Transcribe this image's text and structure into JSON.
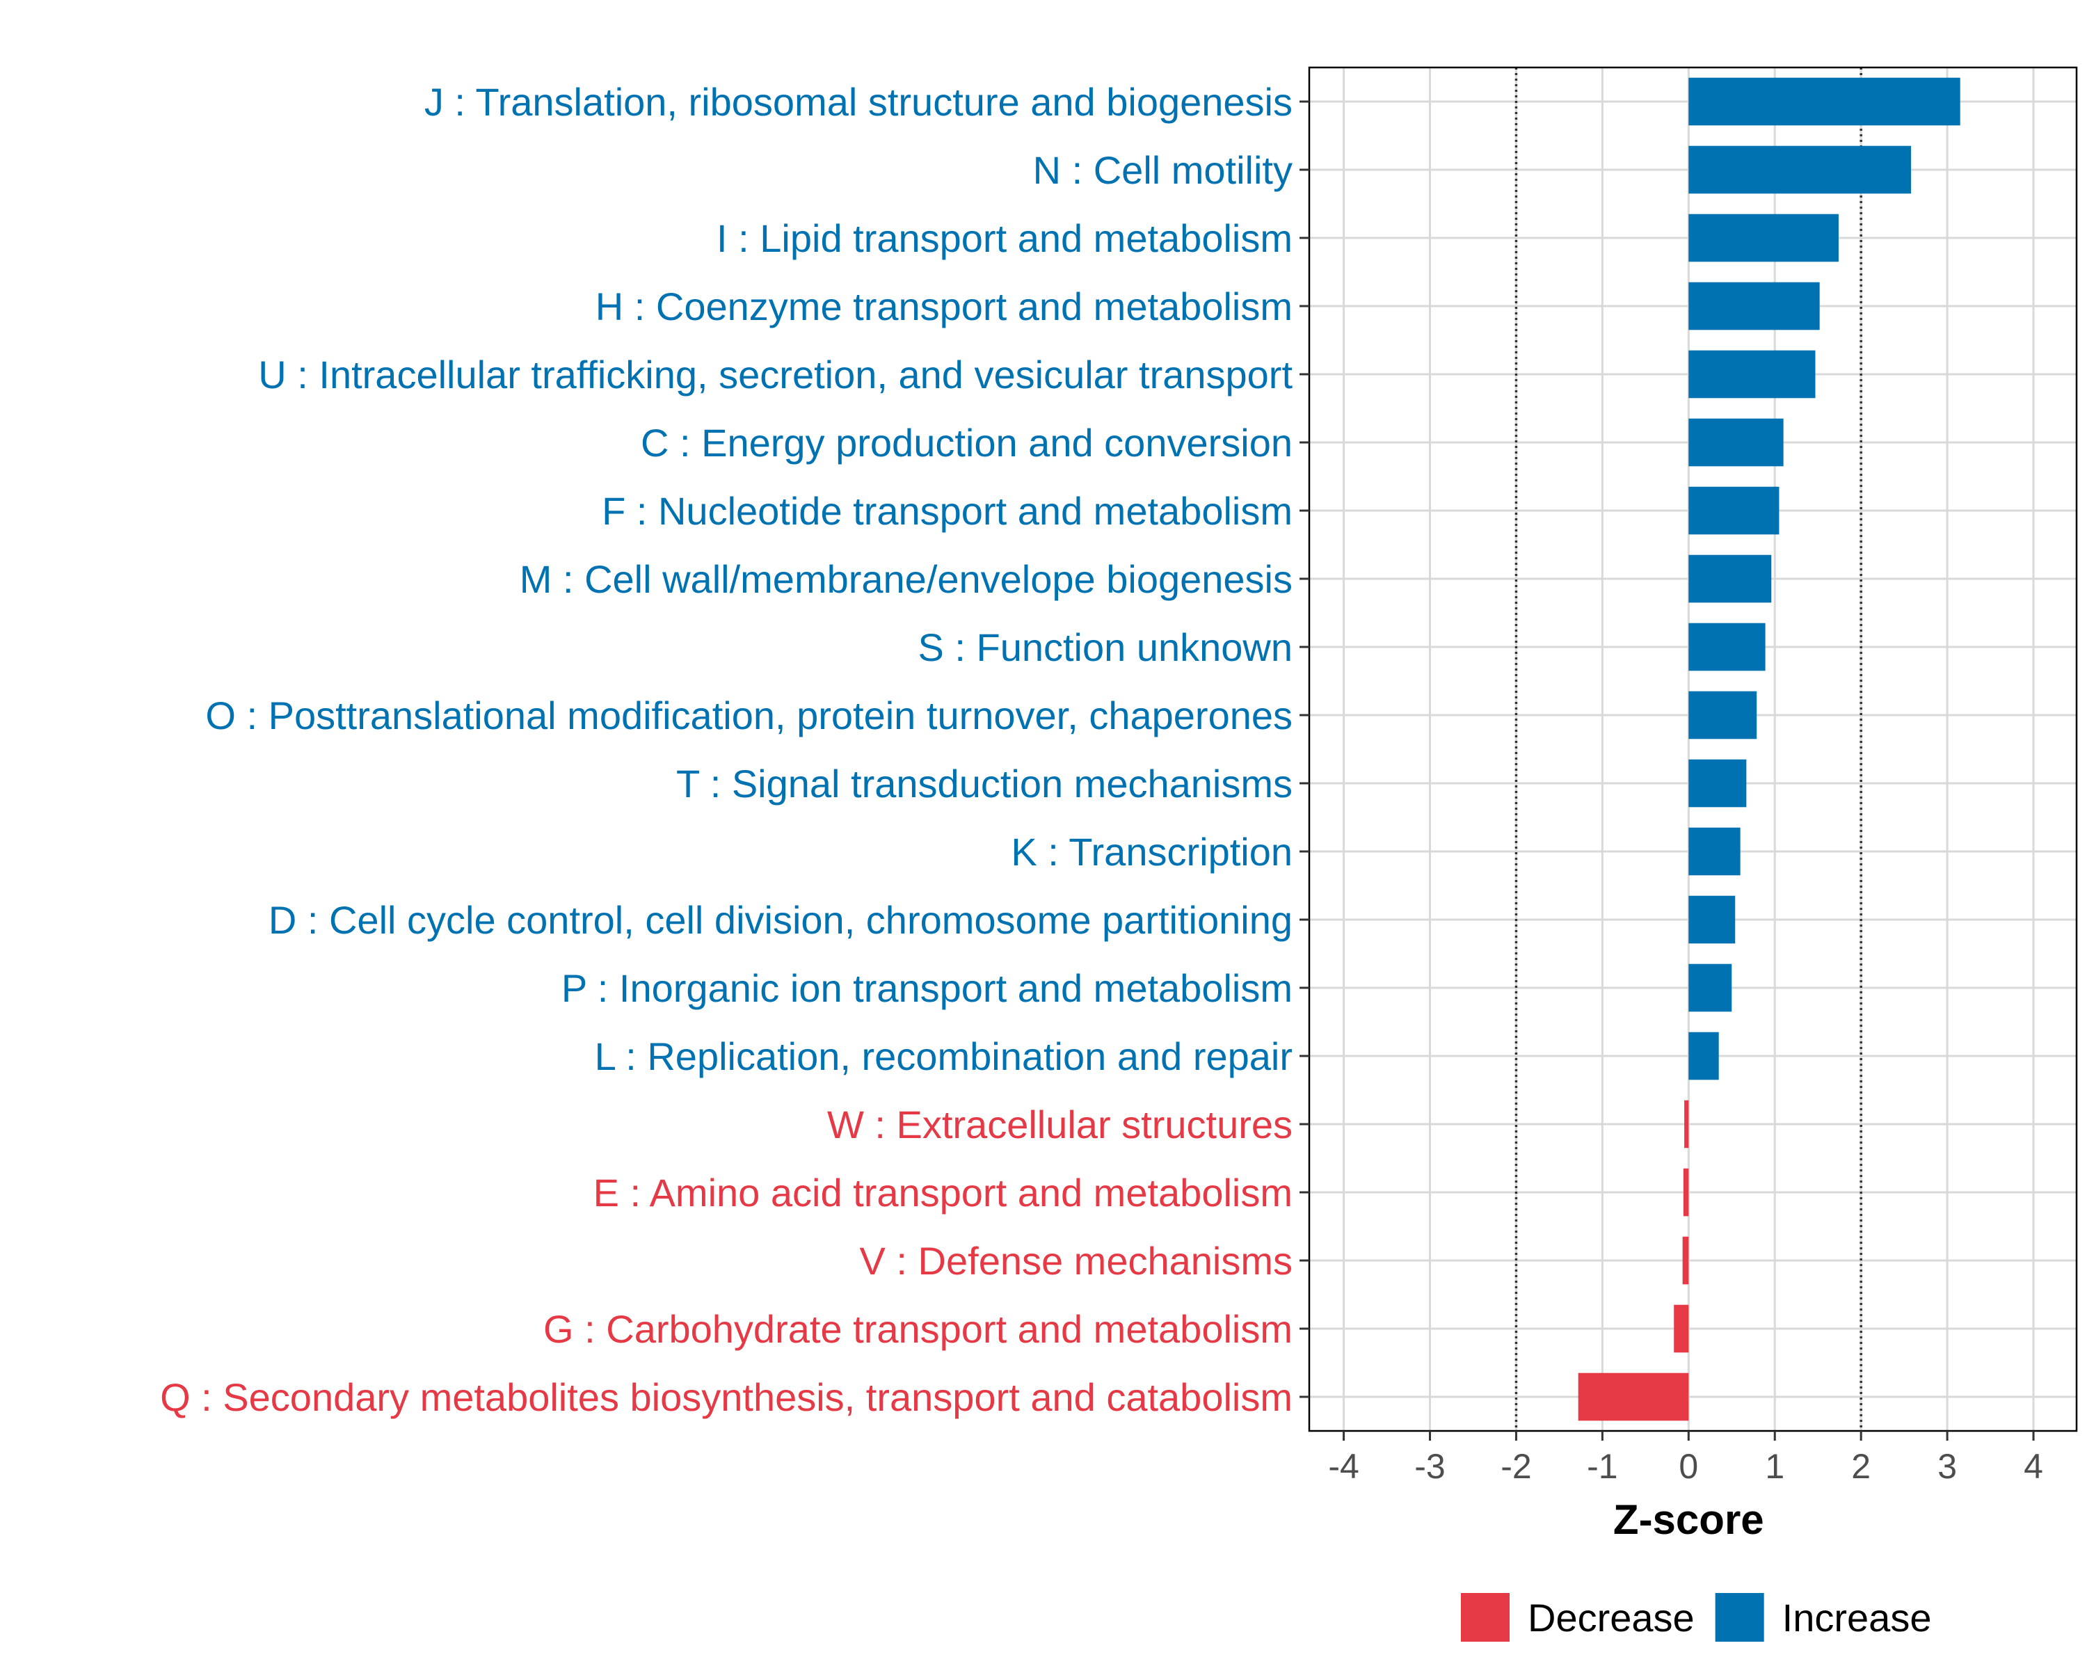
{
  "chart_data": {
    "type": "bar",
    "orientation": "horizontal",
    "title": "",
    "xlabel": "Z-score",
    "ylabel": "",
    "xlim": [
      -4.4,
      4.5
    ],
    "xticks": [
      -4,
      -3,
      -2,
      -1,
      0,
      1,
      2,
      3,
      4
    ],
    "xtick_labels": [
      "-4",
      "-3",
      "-2",
      "-1",
      "0",
      "1",
      "2",
      "3",
      "4"
    ],
    "reference_lines": [
      -2,
      2
    ],
    "grid": true,
    "legend_position": "bottom",
    "colors": {
      "Decrease": "#e63946",
      "Increase": "#0072b2"
    },
    "legend": [
      {
        "label": "Decrease",
        "color": "#e63946"
      },
      {
        "label": "Increase",
        "color": "#0072b2"
      }
    ],
    "categories": [
      "J : Translation, ribosomal structure and biogenesis",
      "N : Cell motility",
      "I : Lipid transport and metabolism",
      "H : Coenzyme transport and metabolism",
      "U : Intracellular trafficking, secretion, and vesicular transport",
      "C : Energy production and conversion",
      "F : Nucleotide transport and metabolism",
      "M : Cell wall/membrane/envelope biogenesis",
      "S : Function unknown",
      "O : Posttranslational modification, protein turnover, chaperones",
      "T : Signal transduction mechanisms",
      "K : Transcription",
      "D : Cell cycle control, cell division, chromosome partitioning",
      "P : Inorganic ion transport and metabolism",
      "L : Replication, recombination and repair",
      "W : Extracellular structures",
      "E : Amino acid transport and metabolism",
      "V : Defense mechanisms",
      "G : Carbohydrate transport and metabolism",
      "Q : Secondary metabolites biosynthesis, transport and catabolism"
    ],
    "values": [
      3.15,
      2.58,
      1.74,
      1.52,
      1.47,
      1.1,
      1.05,
      0.96,
      0.89,
      0.79,
      0.67,
      0.6,
      0.54,
      0.5,
      0.35,
      -0.05,
      -0.06,
      -0.07,
      -0.17,
      -1.28
    ],
    "groups": [
      "Increase",
      "Increase",
      "Increase",
      "Increase",
      "Increase",
      "Increase",
      "Increase",
      "Increase",
      "Increase",
      "Increase",
      "Increase",
      "Increase",
      "Increase",
      "Increase",
      "Increase",
      "Decrease",
      "Decrease",
      "Decrease",
      "Decrease",
      "Decrease"
    ]
  }
}
